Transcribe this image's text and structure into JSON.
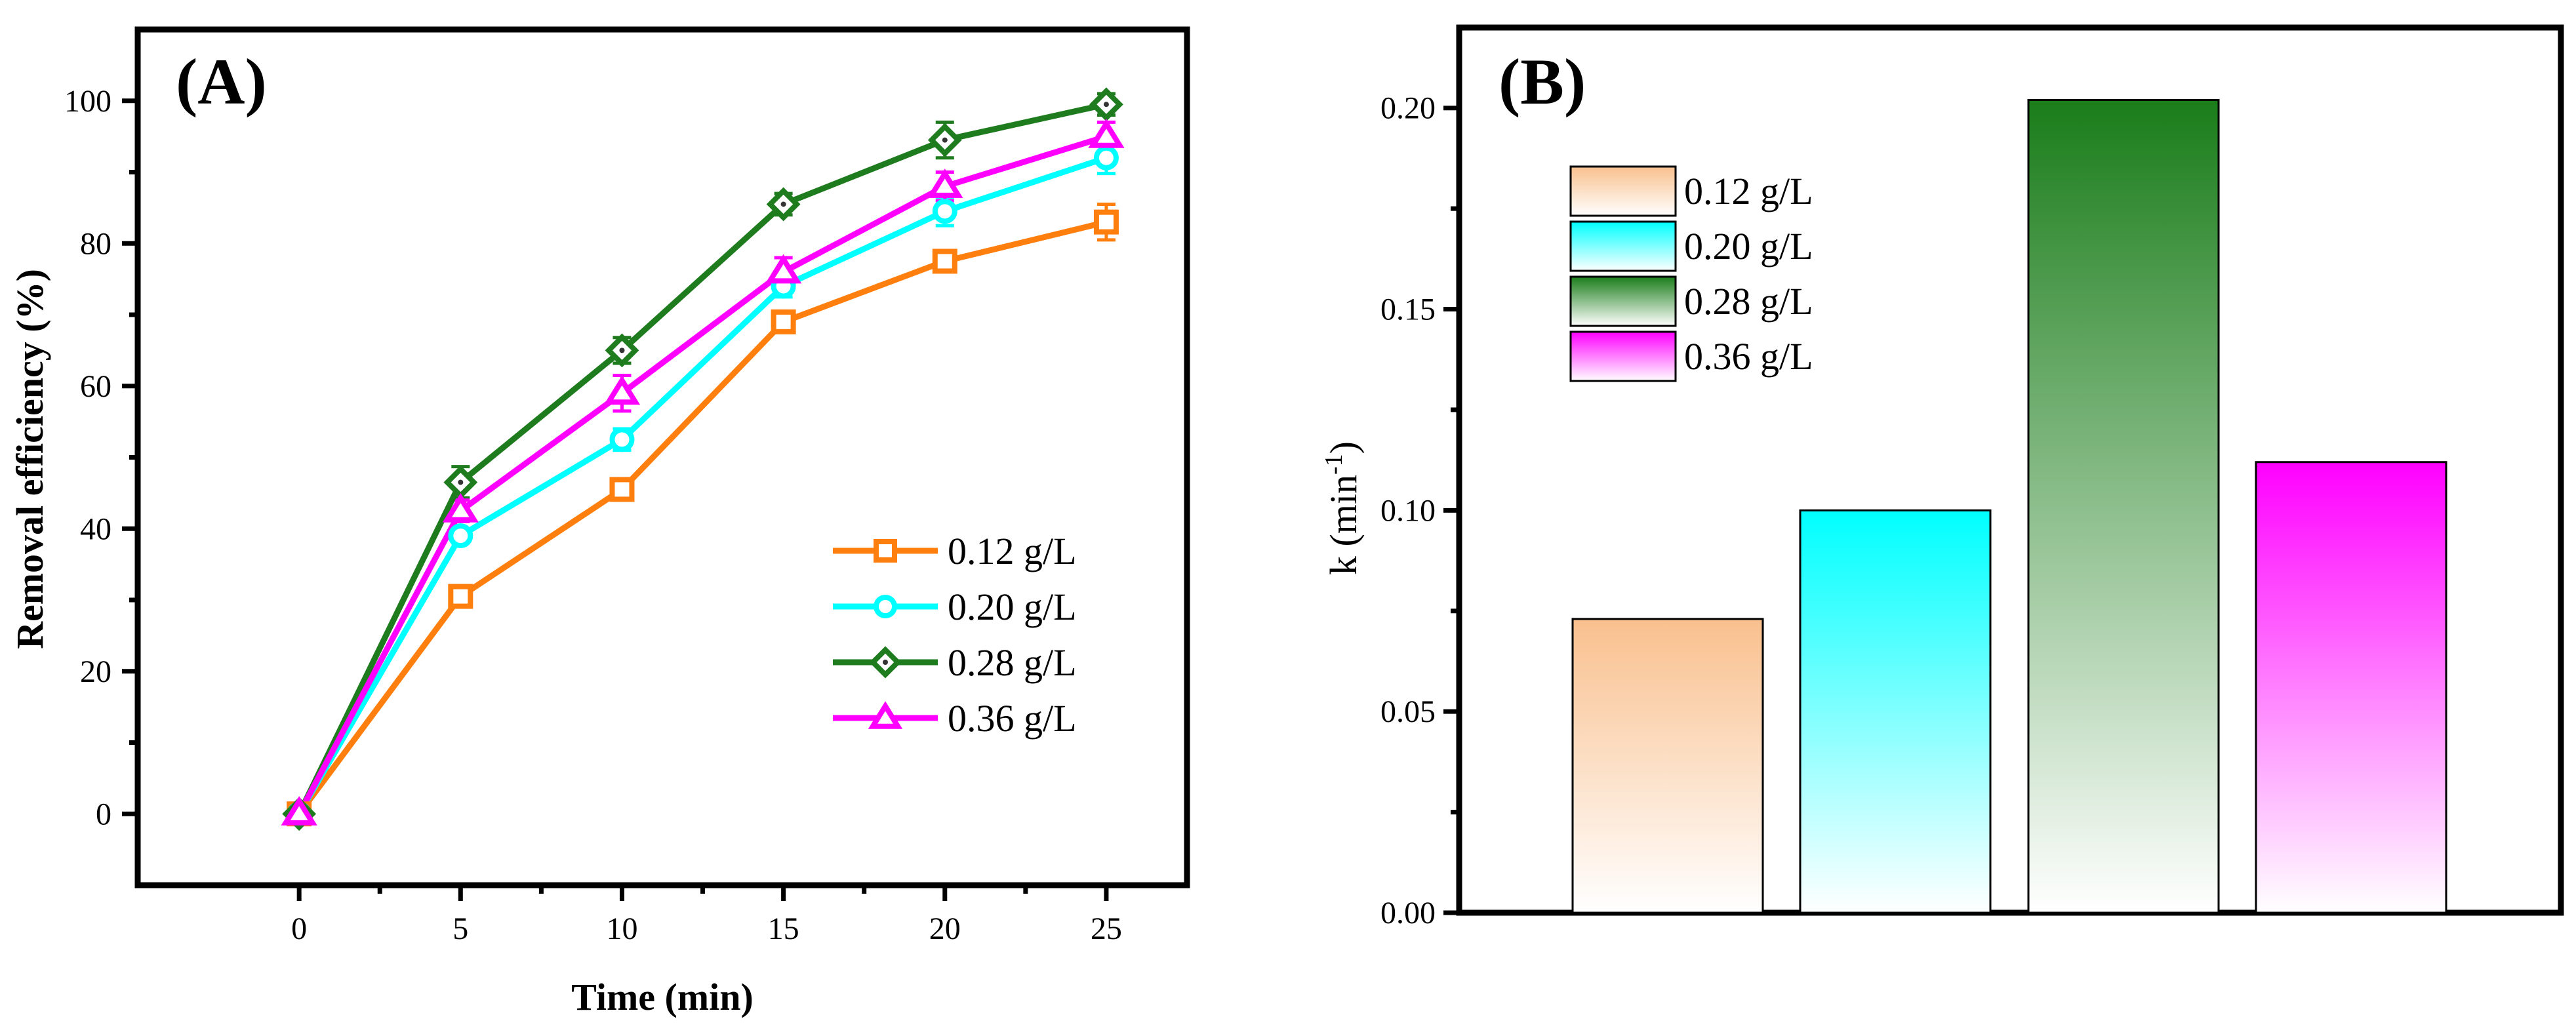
{
  "chart_data": [
    {
      "type": "line",
      "panel_label": "(A)",
      "xlabel": "Time (min)",
      "ylabel": "Removal efficiency (%)",
      "xlim": [
        -5,
        27.5
      ],
      "ylim": [
        -10,
        110
      ],
      "x": [
        0,
        5,
        10,
        15,
        20,
        25
      ],
      "xticks": [
        "0",
        "5",
        "10",
        "15",
        "20",
        "25"
      ],
      "yticks": [
        "0",
        "20",
        "40",
        "60",
        "80",
        "100"
      ],
      "legend_position": "lower-right",
      "series": [
        {
          "name": "0.12 g/L",
          "color": "#ff7f0e",
          "marker": "square",
          "values": [
            0,
            30.5,
            45.5,
            69,
            77.5,
            83
          ],
          "errors": [
            0.5,
            0.8,
            0.9,
            1.5,
            1.2,
            2.5
          ]
        },
        {
          "name": "0.20 g/L",
          "color": "#00ffff",
          "marker": "circle",
          "values": [
            0,
            39,
            52.5,
            74,
            84.5,
            92
          ],
          "errors": [
            0.5,
            1.0,
            1.5,
            1.5,
            2.0,
            2.2
          ]
        },
        {
          "name": "0.28 g/L",
          "color": "#1e7c1e",
          "marker": "diamond",
          "values": [
            0,
            46.5,
            65,
            85.5,
            94.5,
            99.5
          ],
          "errors": [
            0.5,
            2.2,
            1.8,
            1.5,
            2.5,
            1.5
          ]
        },
        {
          "name": "0.36 g/L",
          "color": "#ff00ff",
          "marker": "triangle",
          "values": [
            0,
            42.5,
            59,
            76,
            88,
            95
          ],
          "errors": [
            0.5,
            1.5,
            2.5,
            2.0,
            2.0,
            2.0
          ]
        }
      ]
    },
    {
      "type": "bar",
      "panel_label": "(B)",
      "ylabel_main": "k (min",
      "ylabel_sup": "-1",
      "ylabel_end": ")",
      "ylim": [
        0,
        0.22
      ],
      "yticks": [
        "0.00",
        "0.05",
        "0.10",
        "0.15",
        "0.20"
      ],
      "categories": [
        "0.12 g/L",
        "0.20 g/L",
        "0.28 g/L",
        "0.36 g/L"
      ],
      "values": [
        0.073,
        0.1,
        0.202,
        0.112
      ],
      "colors": [
        "#f9c08e",
        "#00ffff",
        "#1a7d1a",
        "#ff00ff"
      ],
      "legend_position": "top-left"
    }
  ]
}
